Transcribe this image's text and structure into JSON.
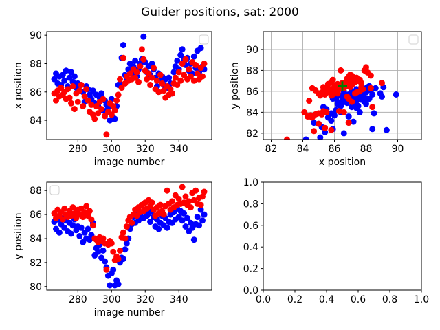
{
  "figure": {
    "title": "Guider positions, sat: 2000",
    "background": "#ffffff",
    "frame_color": "#000000",
    "grid_color": "#b0b0b0",
    "legend_border_color": "#d0d0d0"
  },
  "chart_data": {
    "type": "scatter",
    "title": "Guider positions, sat: 2000",
    "layout_hint": "2x2 subplot grid, bottom-right axes empty",
    "series_colors": {
      "blue": "#0000ff",
      "red": "#ff0000"
    },
    "shared": {
      "image_number": [
        266,
        267,
        268,
        269,
        270,
        271,
        272,
        273,
        274,
        275,
        276,
        277,
        278,
        279,
        280,
        281,
        282,
        283,
        284,
        285,
        286,
        287,
        288,
        289,
        290,
        291,
        292,
        293,
        294,
        295,
        296,
        297,
        298,
        299,
        300,
        301,
        302,
        303,
        304,
        305,
        306,
        307,
        308,
        309,
        310,
        311,
        312,
        313,
        314,
        315,
        316,
        317,
        318,
        319,
        320,
        321,
        322,
        323,
        324,
        325,
        326,
        327,
        328,
        329,
        330,
        331,
        332,
        333,
        334,
        335,
        336,
        337,
        338,
        339,
        340,
        341,
        342,
        343,
        344,
        345,
        346,
        347,
        348,
        349,
        350,
        351,
        352,
        353,
        354,
        355
      ],
      "blue_x": [
        86.9,
        87.3,
        86.6,
        87.1,
        86.5,
        87.2,
        86.8,
        87.5,
        86.4,
        87.0,
        87.4,
        86.7,
        87.1,
        86.3,
        86.6,
        86.1,
        86.5,
        86.0,
        85.3,
        86.4,
        86.2,
        85.8,
        85.5,
        86.1,
        85.2,
        85.8,
        85.0,
        85.6,
        85.9,
        84.7,
        85.4,
        85.1,
        84.9,
        84.0,
        85.5,
        84.2,
        84.1,
        85.0,
        86.5,
        86.6,
        88.4,
        89.3,
        87.2,
        86.9,
        87.6,
        88.0,
        87.3,
        87.8,
        88.2,
        87.1,
        87.6,
        88.0,
        88.3,
        89.9,
        88.1,
        87.4,
        87.8,
        87.2,
        88.0,
        87.6,
        87.0,
        86.4,
        87.3,
        86.8,
        87.1,
        86.5,
        86.9,
        86.3,
        87.0,
        86.6,
        85.9,
        87.4,
        87.8,
        88.2,
        87.6,
        88.6,
        89.0,
        88.3,
        87.9,
        88.4,
        87.5,
        88.0,
        87.3,
        88.5,
        87.7,
        88.9,
        87.4,
        89.1,
        87.8,
        87.6
      ],
      "red_x": [
        85.9,
        85.4,
        86.1,
        85.7,
        86.3,
        85.8,
        86.0,
        85.5,
        86.2,
        85.6,
        85.2,
        86.4,
        84.8,
        85.9,
        85.3,
        86.1,
        86.5,
        85.0,
        85.7,
        86.2,
        85.4,
        84.6,
        85.1,
        84.4,
        84.1,
        85.0,
        84.5,
        85.3,
        84.8,
        85.5,
        84.3,
        83.0,
        84.6,
        85.2,
        84.4,
        85.0,
        84.7,
        85.4,
        85.8,
        86.9,
        86.3,
        88.4,
        86.6,
        87.1,
        86.8,
        87.3,
        86.9,
        87.6,
        87.0,
        87.4,
        86.7,
        87.8,
        89.0,
        88.3,
        87.5,
        86.9,
        87.3,
        86.5,
        87.0,
        87.7,
        86.2,
        86.8,
        86.0,
        87.2,
        86.6,
        86.1,
        85.6,
        86.4,
        85.8,
        86.2,
        85.9,
        86.6,
        87.0,
        86.5,
        87.4,
        86.8,
        88.0,
        87.2,
        88.3,
        86.9,
        87.6,
        87.1,
        88.1,
        86.8,
        87.9,
        87.3,
        86.9,
        87.7,
        87.1,
        88.0
      ],
      "blue_y": [
        85.4,
        84.8,
        85.6,
        84.5,
        85.2,
        85.7,
        84.9,
        85.5,
        84.6,
        85.3,
        84.4,
        85.1,
        85.6,
        84.7,
        85.0,
        84.2,
        84.9,
        83.7,
        84.5,
        84.0,
        84.8,
        83.9,
        84.3,
        85.3,
        82.6,
        83.2,
        82.9,
        83.5,
        82.4,
        83.0,
        82.1,
        81.6,
        80.9,
        80.1,
        81.1,
        81.4,
        80.1,
        80.5,
        80.2,
        82.0,
        82.4,
        82.3,
        83.1,
        83.6,
        84.0,
        84.8,
        85.2,
        85.8,
        85.3,
        86.0,
        85.5,
        85.9,
        86.2,
        85.7,
        86.4,
        85.9,
        86.1,
        85.4,
        86.3,
        85.8,
        85.0,
        85.6,
        84.8,
        85.3,
        85.9,
        85.1,
        85.7,
        84.9,
        85.4,
        86.0,
        85.3,
        86.2,
        85.6,
        86.5,
        85.8,
        86.3,
        85.5,
        86.1,
        85.0,
        85.7,
        84.6,
        85.3,
        84.9,
        83.9,
        85.2,
        85.8,
        85.1,
        86.4,
        85.5,
        86.0
      ],
      "red_y": [
        86.1,
        85.7,
        86.4,
        85.9,
        86.2,
        85.6,
        86.5,
        86.0,
        85.8,
        86.3,
        85.9,
        86.6,
        86.1,
        85.7,
        86.4,
        86.0,
        86.5,
        85.8,
        86.2,
        86.7,
        85.9,
        86.3,
        85.6,
        85.1,
        84.0,
        83.9,
        83.7,
        84.1,
        83.8,
        84.0,
        83.6,
        81.4,
        83.5,
        83.8,
        83.6,
        82.9,
        82.2,
        82.5,
        82.3,
        83.0,
        84.1,
        84.5,
        84.0,
        85.0,
        85.5,
        85.8,
        85.3,
        86.0,
        86.4,
        85.9,
        86.6,
        86.2,
        86.8,
        86.3,
        87.0,
        86.5,
        87.2,
        86.7,
        87.0,
        86.4,
        85.9,
        86.6,
        86.1,
        86.8,
        86.3,
        86.0,
        86.7,
        88.0,
        86.9,
        86.4,
        87.1,
        86.6,
        87.6,
        86.8,
        87.3,
        86.9,
        88.3,
        87.0,
        87.5,
        86.8,
        87.1,
        86.6,
        87.8,
        87.2,
        88.0,
        86.9,
        87.4,
        86.8,
        87.5,
        87.9
      ]
    },
    "subplots": [
      {
        "id": "top-left",
        "xlabel": "image number",
        "ylabel": "x position",
        "xlim": [
          261.5,
          359.5
        ],
        "ylim": [
          82.65,
          90.25
        ],
        "xticks": [
          280,
          300,
          320,
          340
        ],
        "xtick_labels": [
          "280",
          "300",
          "320",
          "340"
        ],
        "yticks": [
          84,
          86,
          88,
          90
        ],
        "ytick_labels": [
          "84",
          "86",
          "88",
          "90"
        ],
        "grid": false,
        "legend": {
          "position": "upper right",
          "entries": []
        },
        "series": [
          {
            "name": "blue",
            "color": "#0000ff",
            "x": "image_number",
            "y": "blue_x"
          },
          {
            "name": "red",
            "color": "#ff0000",
            "x": "image_number",
            "y": "red_x"
          }
        ],
        "markers": []
      },
      {
        "id": "top-right",
        "xlabel": "x position",
        "ylabel": "y position",
        "xlim": [
          81.5,
          91.5
        ],
        "ylim": [
          81.4,
          91.7
        ],
        "xticks": [
          82,
          84,
          86,
          88,
          90
        ],
        "xtick_labels": [
          "82",
          "84",
          "86",
          "88",
          "90"
        ],
        "yticks": [
          82,
          84,
          86,
          88,
          90
        ],
        "ytick_labels": [
          "82",
          "84",
          "86",
          "88",
          "90"
        ],
        "grid": true,
        "legend": {
          "position": "upper right",
          "entries": []
        },
        "series": [
          {
            "name": "blue",
            "color": "#0000ff",
            "x": "blue_x",
            "y": "blue_y"
          },
          {
            "name": "red",
            "color": "#ff0000",
            "x": "red_x",
            "y": "red_y"
          }
        ],
        "markers": [
          {
            "shape": "plus",
            "x": 86.5,
            "y": 86.5,
            "color": "#008000",
            "size": 14
          }
        ]
      },
      {
        "id": "bottom-left",
        "xlabel": "image number",
        "ylabel": "y position",
        "xlim": [
          261.5,
          359.5
        ],
        "ylim": [
          79.7,
          88.7
        ],
        "xticks": [
          280,
          300,
          320,
          340
        ],
        "xtick_labels": [
          "280",
          "300",
          "320",
          "340"
        ],
        "yticks": [
          80,
          82,
          84,
          86,
          88
        ],
        "ytick_labels": [
          "80",
          "82",
          "84",
          "86",
          "88"
        ],
        "grid": false,
        "legend": {
          "position": "upper left",
          "entries": []
        },
        "series": [
          {
            "name": "blue",
            "color": "#0000ff",
            "x": "image_number",
            "y": "blue_y"
          },
          {
            "name": "red",
            "color": "#ff0000",
            "x": "image_number",
            "y": "red_y"
          }
        ],
        "markers": []
      },
      {
        "id": "bottom-right",
        "xlabel": "",
        "ylabel": "",
        "xlim": [
          0,
          1
        ],
        "ylim": [
          0,
          1
        ],
        "xticks": [
          0,
          0.2,
          0.4,
          0.6,
          0.8,
          1.0
        ],
        "xtick_labels": [
          "0.0",
          "0.2",
          "0.4",
          "0.6",
          "0.8",
          "1.0"
        ],
        "yticks": [
          0,
          0.2,
          0.4,
          0.6,
          0.8,
          1.0
        ],
        "ytick_labels": [
          "0.0",
          "0.2",
          "0.4",
          "0.6",
          "0.8",
          "1.0"
        ],
        "grid": false,
        "legend": null,
        "series": [],
        "markers": []
      }
    ]
  }
}
